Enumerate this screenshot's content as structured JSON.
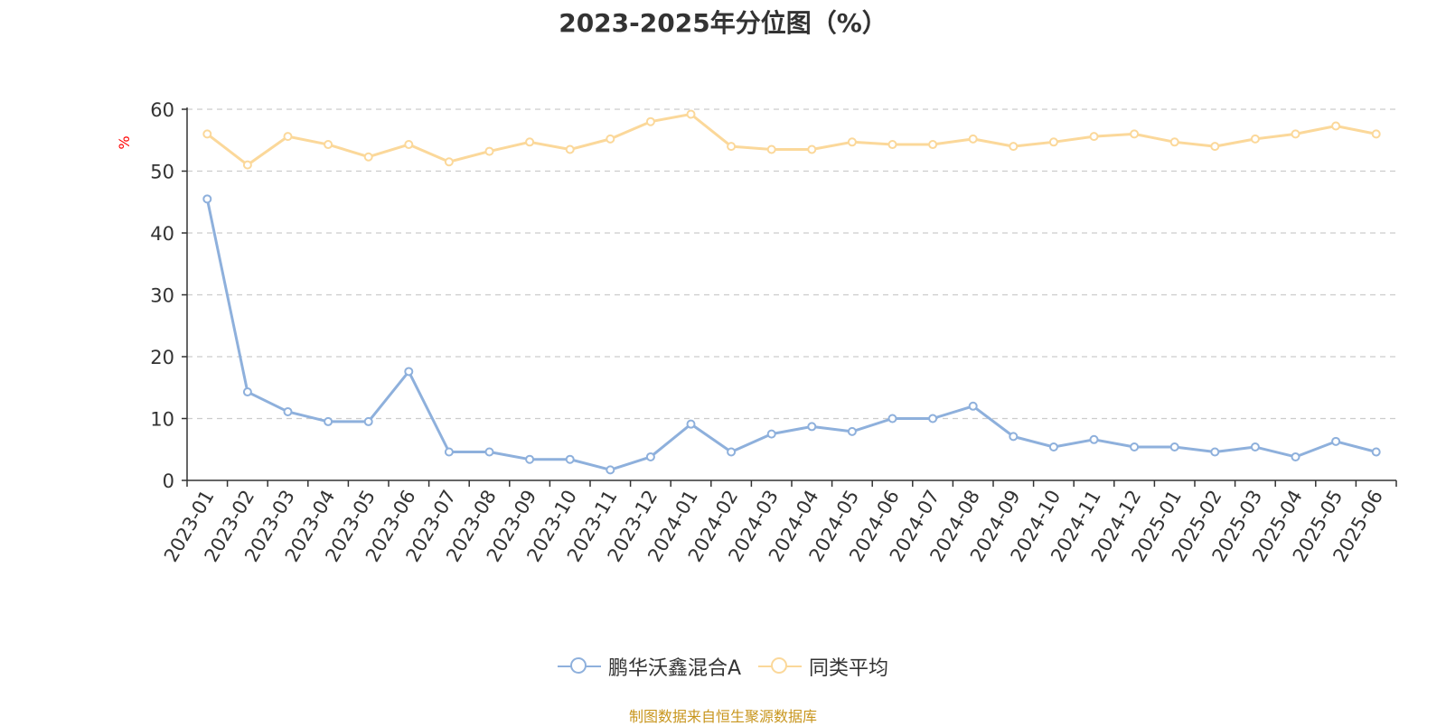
{
  "chart_data": {
    "type": "line",
    "title": "2023-2025年分位图（%）",
    "ylabel": "%",
    "xlabel": "",
    "ylim": [
      0,
      60
    ],
    "yticks": [
      0,
      10,
      20,
      30,
      40,
      50,
      60
    ],
    "grid": true,
    "legend_position": "bottom",
    "categories": [
      "2023-01",
      "2023-02",
      "2023-03",
      "2023-04",
      "2023-05",
      "2023-06",
      "2023-07",
      "2023-08",
      "2023-09",
      "2023-10",
      "2023-11",
      "2023-12",
      "2024-01",
      "2024-02",
      "2024-03",
      "2024-04",
      "2024-05",
      "2024-06",
      "2024-07",
      "2024-08",
      "2024-09",
      "2024-10",
      "2024-11",
      "2024-12",
      "2025-01",
      "2025-02",
      "2025-03",
      "2025-04",
      "2025-05",
      "2025-06"
    ],
    "series": [
      {
        "name": "鹏华沃鑫混合A",
        "color": "#8eb0dc",
        "values": [
          45.5,
          14.3,
          11.1,
          9.5,
          9.5,
          17.6,
          4.6,
          4.6,
          3.4,
          3.4,
          1.7,
          3.8,
          9.1,
          4.6,
          7.5,
          8.7,
          7.9,
          10.0,
          10.0,
          12.0,
          7.1,
          5.4,
          6.6,
          5.4,
          5.4,
          4.6,
          5.4,
          3.8,
          6.3,
          4.6
        ]
      },
      {
        "name": "同类平均",
        "color": "#fbd89a",
        "values": [
          56.0,
          51.0,
          55.6,
          54.3,
          52.3,
          54.3,
          51.5,
          53.2,
          54.7,
          53.5,
          55.2,
          58.0,
          59.2,
          54.0,
          53.5,
          53.5,
          54.7,
          54.3,
          54.3,
          55.2,
          54.0,
          54.7,
          55.6,
          56.0,
          54.7,
          54.0,
          55.2,
          56.0,
          57.3,
          56.0
        ]
      }
    ]
  },
  "footer": {
    "source": "制图数据来自恒生聚源数据库"
  }
}
